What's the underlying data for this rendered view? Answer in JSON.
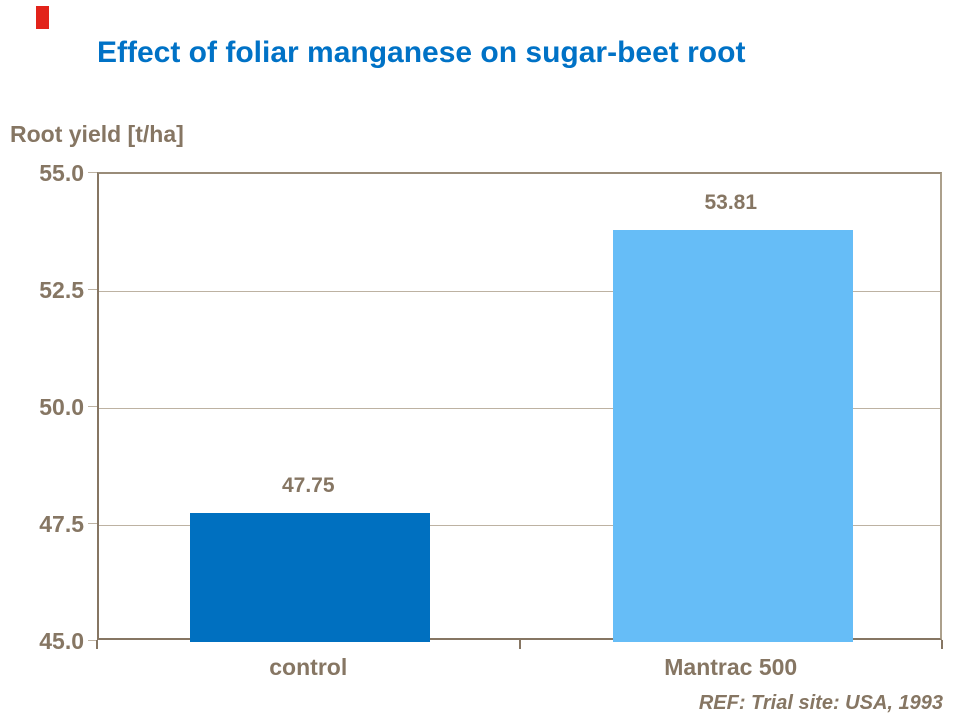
{
  "colors": {
    "accent_red": "#e2231a",
    "title_blue": "#0072c6",
    "axis_brown": "#867663",
    "grid_tan": "#bdb2a2",
    "frame_top": "#998c79",
    "frame_right": "#aca08c",
    "bar_control": "#0070c0",
    "bar_mantrac": "#66bdf7"
  },
  "chart_data": {
    "type": "bar",
    "title": "Effect of foliar manganese on sugar-beet root",
    "ylabel": "Root yield [t/ha]",
    "xlabel": "",
    "categories": [
      "control",
      "Mantrac 500"
    ],
    "values": [
      47.75,
      53.81
    ],
    "data_labels": [
      "47.75",
      "53.81"
    ],
    "bar_colors": [
      "#0070c0",
      "#66bdf7"
    ],
    "ylim": [
      45.0,
      55.0
    ],
    "yticks": [
      45.0,
      47.5,
      50.0,
      52.5,
      55.0
    ],
    "ytick_labels": [
      "45.0",
      "47.5",
      "50.0",
      "52.5",
      "55.0"
    ],
    "grid": true,
    "legend": "none",
    "annotation": "REF: Trial site: USA, 1993"
  }
}
